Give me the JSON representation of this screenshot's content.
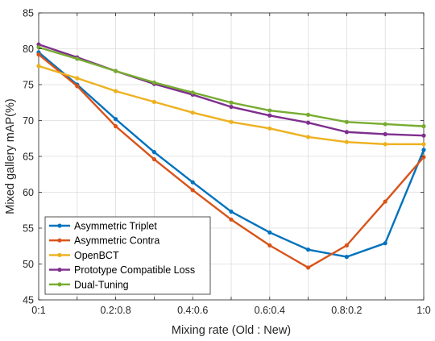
{
  "chart_data": {
    "type": "line",
    "xlabel": "Mixing rate (Old : New)",
    "ylabel": "Mixed gallery mAP(%)",
    "x": [
      0,
      0.1,
      0.2,
      0.3,
      0.4,
      0.5,
      0.6,
      0.7,
      0.8,
      0.9,
      1.0
    ],
    "xlim": [
      0,
      1
    ],
    "ylim": [
      45,
      85
    ],
    "xticks": [
      0,
      0.2,
      0.4,
      0.6,
      0.8,
      1.0
    ],
    "xtick_labels": [
      "0:1",
      "0.2:0.8",
      "0.4:0.6",
      "0.6:0.4",
      "0.8:0.2",
      "1:0"
    ],
    "yticks": [
      45,
      50,
      55,
      60,
      65,
      70,
      75,
      80,
      85
    ],
    "ytick_labels": [
      "45",
      "50",
      "55",
      "60",
      "65",
      "70",
      "75",
      "80",
      "85"
    ],
    "grid": true,
    "legend_position": "bottom-left",
    "series": [
      {
        "name": "Asymmetric Triplet",
        "color": "#0072BD",
        "values": [
          79.5,
          75.0,
          70.2,
          65.6,
          61.4,
          57.3,
          54.4,
          52.0,
          51.0,
          52.9,
          65.9
        ]
      },
      {
        "name": "Asymmetric Contra",
        "color": "#D95319",
        "values": [
          79.2,
          74.8,
          69.2,
          64.6,
          60.3,
          56.2,
          52.6,
          49.5,
          52.6,
          58.7,
          64.9
        ]
      },
      {
        "name": "OpenBCT",
        "color": "#EDB120",
        "values": [
          77.6,
          75.9,
          74.1,
          72.6,
          71.1,
          69.8,
          68.9,
          67.7,
          67.0,
          66.7,
          66.7
        ]
      },
      {
        "name": "Prototype Compatible Loss",
        "color": "#7E2F8E",
        "values": [
          80.6,
          78.8,
          76.9,
          75.1,
          73.6,
          71.9,
          70.7,
          69.7,
          68.4,
          68.1,
          67.9
        ]
      },
      {
        "name": "Dual-Tuning",
        "color": "#77AC30",
        "values": [
          80.2,
          78.6,
          76.9,
          75.3,
          73.9,
          72.5,
          71.4,
          70.8,
          69.8,
          69.5,
          69.2
        ]
      }
    ]
  }
}
